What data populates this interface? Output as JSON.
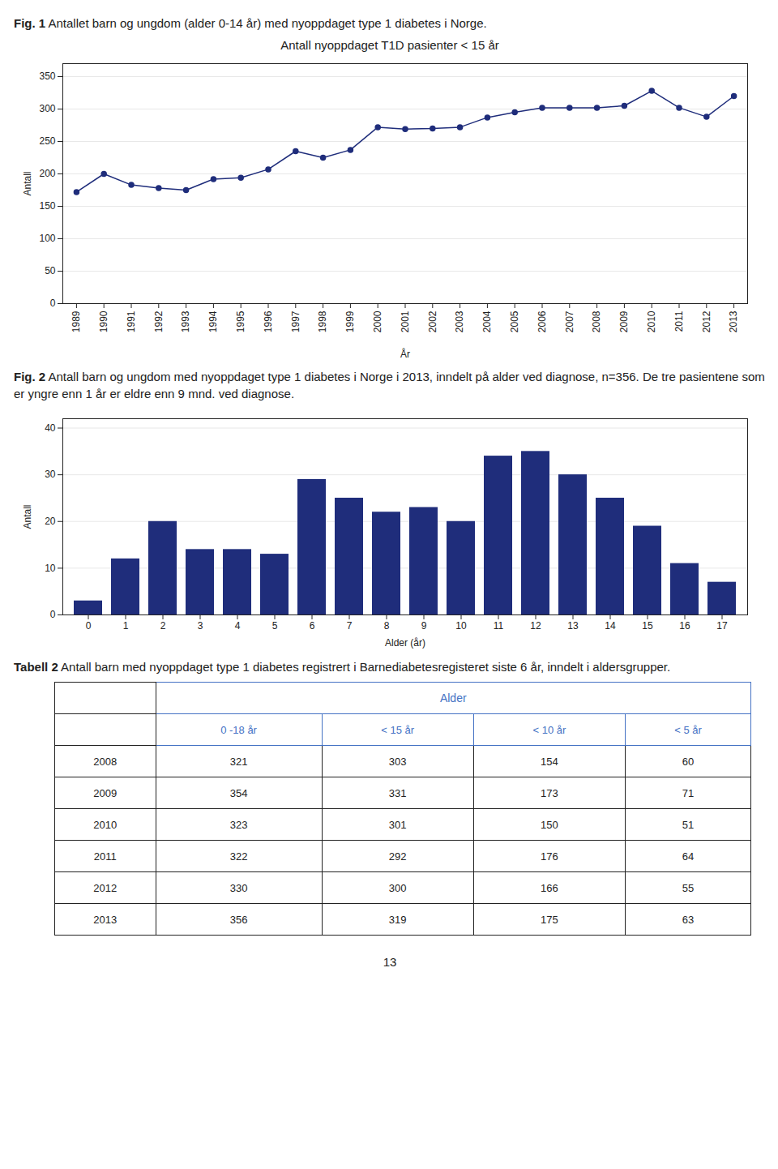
{
  "chart_data": [
    {
      "type": "line",
      "caption": {
        "label": "Fig. 1",
        "text": "Antallet barn og ungdom (alder 0-14 år) med nyoppdaget type 1 diabetes i Norge."
      },
      "title": "Antall nyoppdaget T1D pasienter < 15 år",
      "xlabel": "År",
      "ylabel": "Antall",
      "x": [
        1989,
        1990,
        1991,
        1992,
        1993,
        1994,
        1995,
        1996,
        1997,
        1998,
        1999,
        2000,
        2001,
        2002,
        2003,
        2004,
        2005,
        2006,
        2007,
        2008,
        2009,
        2010,
        2011,
        2012,
        2013
      ],
      "values": [
        172,
        200,
        183,
        178,
        175,
        192,
        194,
        207,
        235,
        225,
        237,
        272,
        269,
        270,
        272,
        287,
        295,
        302,
        302,
        302,
        305,
        328,
        302,
        288,
        320
      ],
      "color": "#1F2D7B",
      "marker": "circle",
      "xlim": [
        1988.5,
        2013.5
      ],
      "xticks": [
        1989,
        1990,
        1991,
        1992,
        1993,
        1994,
        1995,
        1996,
        1997,
        1998,
        1999,
        2000,
        2001,
        2002,
        2003,
        2004,
        2005,
        2006,
        2007,
        2008,
        2009,
        2010,
        2011,
        2012,
        2013
      ],
      "ylim": [
        0,
        370
      ],
      "yticks": [
        0,
        50,
        100,
        150,
        200,
        250,
        300,
        350
      ],
      "grid": true
    },
    {
      "type": "bar",
      "caption": {
        "label": "Fig. 2",
        "text": "Antall barn og ungdom med nyoppdaget type 1 diabetes i Norge i 2013, inndelt på alder ved diagnose, n=356. De tre pasientene som er yngre enn 1 år er eldre enn 9 mnd. ved diagnose."
      },
      "xlabel": "Alder (år)",
      "ylabel": "Antall",
      "categories": [
        0,
        1,
        2,
        3,
        4,
        5,
        6,
        7,
        8,
        9,
        10,
        11,
        12,
        13,
        14,
        15,
        16,
        17
      ],
      "values": [
        3,
        12,
        20,
        14,
        14,
        13,
        29,
        25,
        22,
        23,
        20,
        34,
        35,
        30,
        25,
        19,
        11,
        7
      ],
      "color": "#1F2D7B",
      "ylim": [
        0,
        42
      ],
      "yticks": [
        0,
        10,
        20,
        30,
        40
      ],
      "grid": true
    },
    {
      "type": "table",
      "caption": {
        "label": "Tabell 2",
        "text": "Antall barn med nyoppdaget type 1 diabetes registrert i Barnediabetesregisteret siste 6 år, inndelt i aldersgrupper."
      },
      "header": "Alder",
      "columns": [
        "0 -18 år",
        "< 15 år",
        "< 10 år",
        "< 5 år"
      ],
      "color": "#4472C4",
      "rows": [
        [
          "2008",
          "321",
          "303",
          "154",
          "60"
        ],
        [
          "2009",
          "354",
          "331",
          "173",
          "71"
        ],
        [
          "2010",
          "323",
          "301",
          "150",
          "51"
        ],
        [
          "2011",
          "322",
          "292",
          "176",
          "64"
        ],
        [
          "2012",
          "330",
          "300",
          "166",
          "55"
        ],
        [
          "2013",
          "356",
          "319",
          "175",
          "63"
        ]
      ]
    }
  ],
  "page_number": "13"
}
